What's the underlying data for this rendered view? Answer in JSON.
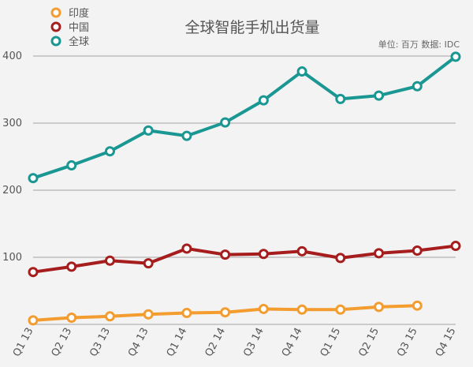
{
  "chart_data": {
    "type": "line",
    "title": "全球智能手机出货量",
    "note": "单位: 百万  数据: IDC",
    "categories": [
      "Q1 13",
      "Q2 13",
      "Q3 13",
      "Q4 13",
      "Q1 14",
      "Q2 14",
      "Q3 14",
      "Q4 14",
      "Q1 15",
      "Q2 15",
      "Q3 15",
      "Q4 15"
    ],
    "ylim": [
      0,
      400
    ],
    "yticks": [
      100,
      200,
      300,
      400
    ],
    "grid": true,
    "legend_position": "top-left",
    "series": [
      {
        "name": "印度",
        "color": "#f39c2f",
        "values": [
          6,
          10,
          12,
          15,
          17,
          18,
          23,
          22,
          22,
          26,
          28,
          null
        ]
      },
      {
        "name": "中国",
        "color": "#a51d1d",
        "values": [
          78,
          86,
          95,
          91,
          113,
          104,
          105,
          109,
          99,
          106,
          110,
          117
        ]
      },
      {
        "name": "全球",
        "color": "#1a9793",
        "values": [
          218,
          237,
          258,
          289,
          281,
          301,
          334,
          377,
          336,
          341,
          355,
          399
        ]
      }
    ]
  }
}
